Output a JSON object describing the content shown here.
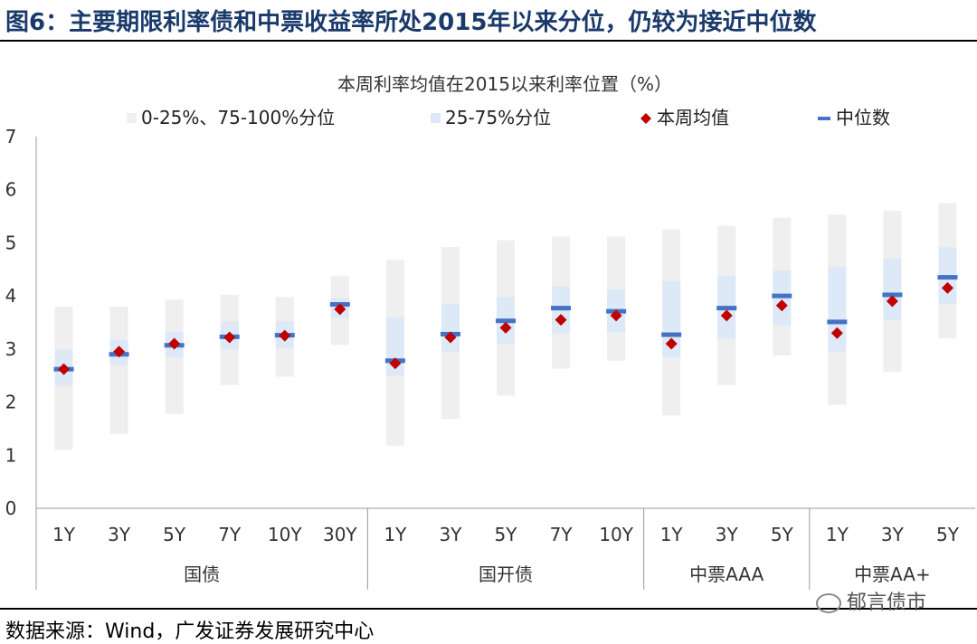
{
  "figure_title": "图6：主要期限利率债和中票收益率所处2015年以来分位，仍较为接近中位数",
  "source_note": "数据来源：Wind，广发证券发展研究中心",
  "watermark": "郁言债市",
  "colors": {
    "title": "#1a3a6b",
    "outer_band": "#efefef",
    "inner_band": "#dde9f7",
    "weekly_mean": "#c00000",
    "median": "#4472c4",
    "axis": "#999999"
  },
  "chart_data": {
    "type": "range",
    "title": "本周利率均值在2015以来利率位置（%）",
    "ylim": [
      0,
      7
    ],
    "yticks": [
      0,
      1,
      2,
      3,
      4,
      5,
      6,
      7
    ],
    "legend": {
      "outer": "0-25%、75-100%分位",
      "inner": "25-75%分位",
      "mean": "本周均值",
      "median": "中位数"
    },
    "groups": [
      {
        "name": "国债",
        "categories": [
          "1Y",
          "3Y",
          "5Y",
          "7Y",
          "10Y",
          "30Y"
        ]
      },
      {
        "name": "国开债",
        "categories": [
          "1Y",
          "3Y",
          "5Y",
          "7Y",
          "10Y"
        ]
      },
      {
        "name": "中票AAA",
        "categories": [
          "1Y",
          "3Y",
          "5Y"
        ]
      },
      {
        "name": "中票AA+",
        "categories": [
          "1Y",
          "3Y",
          "5Y"
        ]
      }
    ],
    "categories": [
      "1Y",
      "3Y",
      "5Y",
      "7Y",
      "10Y",
      "30Y",
      "1Y",
      "3Y",
      "5Y",
      "7Y",
      "10Y",
      "1Y",
      "3Y",
      "5Y",
      "1Y",
      "3Y",
      "5Y"
    ],
    "min": [
      1.1,
      1.4,
      1.78,
      2.32,
      2.48,
      3.08,
      1.18,
      1.68,
      2.12,
      2.63,
      2.78,
      1.75,
      2.32,
      2.88,
      1.95,
      2.57,
      3.2
    ],
    "q25": [
      2.3,
      2.7,
      2.85,
      3.0,
      3.02,
      3.58,
      2.5,
      2.95,
      3.1,
      3.3,
      3.32,
      2.85,
      3.2,
      3.45,
      2.95,
      3.55,
      3.85
    ],
    "q75": [
      3.0,
      3.18,
      3.32,
      3.52,
      3.52,
      3.95,
      3.6,
      3.85,
      3.98,
      4.18,
      4.12,
      4.28,
      4.38,
      4.48,
      4.55,
      4.7,
      4.92
    ],
    "max": [
      3.8,
      3.8,
      3.93,
      4.02,
      3.98,
      4.38,
      4.68,
      4.92,
      5.05,
      5.12,
      5.12,
      5.25,
      5.32,
      5.47,
      5.53,
      5.6,
      5.75
    ],
    "median": [
      2.62,
      2.9,
      3.07,
      3.23,
      3.26,
      3.84,
      2.78,
      3.28,
      3.53,
      3.77,
      3.71,
      3.27,
      3.77,
      4.0,
      3.51,
      4.02,
      4.35
    ],
    "mean": [
      2.62,
      2.95,
      3.1,
      3.22,
      3.25,
      3.75,
      2.73,
      3.22,
      3.4,
      3.55,
      3.63,
      3.1,
      3.63,
      3.82,
      3.3,
      3.9,
      4.15
    ]
  }
}
